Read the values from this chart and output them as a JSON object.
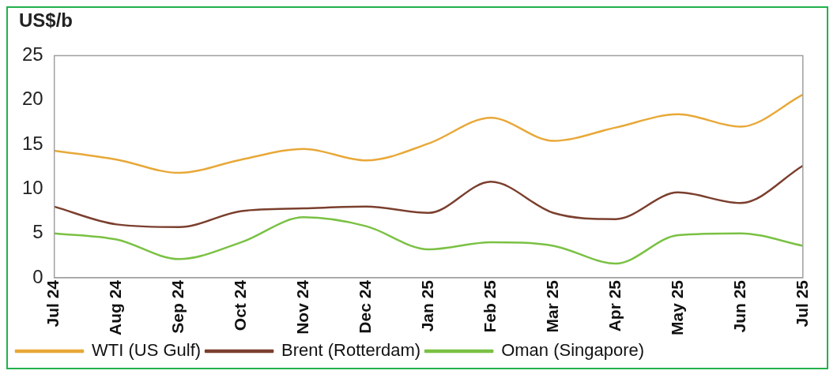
{
  "chart_data": {
    "type": "line",
    "ylabel": "US$/b",
    "categories": [
      "Jul 24",
      "Aug 24",
      "Sep 24",
      "Oct 24",
      "Nov 24",
      "Dec 24",
      "Jan 25",
      "Feb 25",
      "Mar 25",
      "Apr 25",
      "May 25",
      "Jun 25",
      "Jul 25"
    ],
    "series": [
      {
        "name": "WTI (US Gulf)",
        "color": "#e8a838",
        "values": [
          14.3,
          13.3,
          11.8,
          13.3,
          14.5,
          13.2,
          15.1,
          18.0,
          15.4,
          16.9,
          18.4,
          17.0,
          20.6
        ]
      },
      {
        "name": "Brent (Rotterdam)",
        "color": "#7b3f2e",
        "values": [
          8.0,
          6.0,
          5.7,
          7.5,
          7.8,
          8.0,
          7.3,
          10.8,
          7.3,
          6.6,
          9.6,
          8.4,
          12.6
        ]
      },
      {
        "name": "Oman (Singapore)",
        "color": "#7ac143",
        "values": [
          5.0,
          4.3,
          2.1,
          4.0,
          6.8,
          5.8,
          3.2,
          4.0,
          3.6,
          1.6,
          4.8,
          5.0,
          3.6
        ]
      }
    ],
    "ylim": [
      0,
      25
    ],
    "yticks": [
      0,
      5,
      10,
      15,
      20,
      25
    ],
    "grid": false,
    "legend": "bottom",
    "marker": "none",
    "line_style": "solid"
  }
}
